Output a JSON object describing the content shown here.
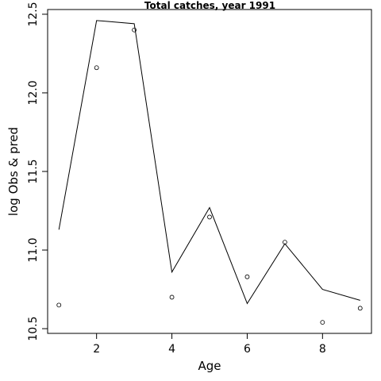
{
  "chart_data": {
    "type": "line",
    "title": "Total catches, year 1991",
    "xlabel": "Age",
    "ylabel": "log Obs & pred",
    "xlim": [
      0.7,
      9.3
    ],
    "ylim": [
      10.47,
      12.53
    ],
    "x_ticks": [
      2,
      4,
      6,
      8
    ],
    "y_ticks": [
      10.5,
      11.0,
      11.5,
      12.0,
      12.5
    ],
    "x_tick_labels": [
      "2",
      "4",
      "6",
      "8"
    ],
    "y_tick_labels": [
      "10.5",
      "11.0",
      "11.5",
      "12.0",
      "12.5"
    ],
    "grid": false,
    "series": [
      {
        "style": "line",
        "x": [
          1,
          2,
          3,
          4,
          5,
          6,
          7,
          8,
          9
        ],
        "values": [
          11.13,
          12.46,
          12.44,
          10.86,
          11.27,
          10.66,
          11.04,
          10.75,
          10.68
        ]
      },
      {
        "style": "points",
        "x": [
          1,
          2,
          3,
          4,
          5,
          6,
          7,
          8,
          9
        ],
        "values": [
          10.65,
          12.16,
          12.4,
          10.7,
          11.21,
          10.83,
          11.05,
          10.54,
          10.63
        ]
      }
    ]
  }
}
